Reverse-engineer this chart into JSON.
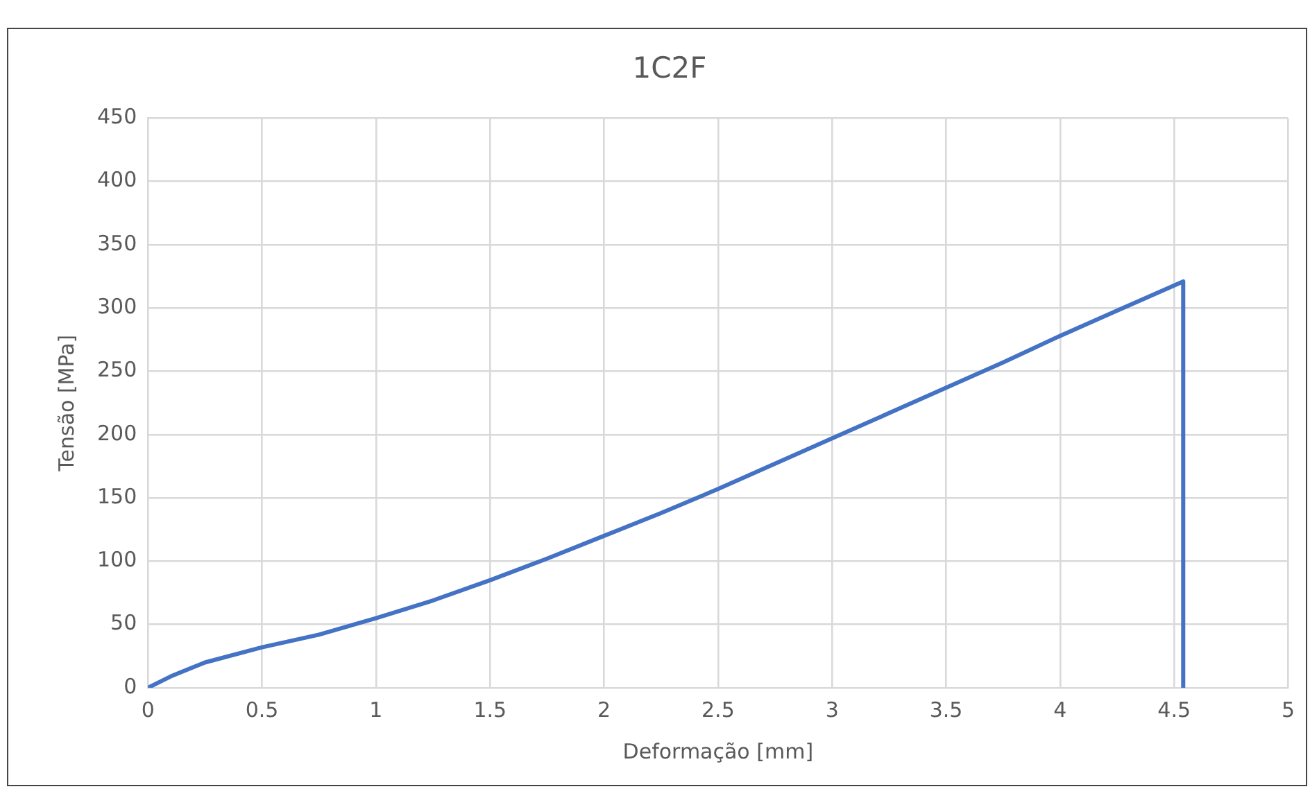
{
  "chart_data": {
    "type": "line",
    "title": "1C2F",
    "xlabel": "Deformação [mm]",
    "ylabel": "Tensão [MPa]",
    "series": [
      {
        "color": "#4472c4",
        "x": [
          0,
          0.1,
          0.25,
          0.5,
          0.75,
          1,
          1.25,
          1.5,
          1.75,
          2,
          2.25,
          2.5,
          2.75,
          3,
          3.25,
          3.5,
          3.75,
          4,
          4.25,
          4.54,
          4.54
        ],
        "values": [
          0,
          9,
          20,
          32,
          42,
          55,
          69,
          85,
          102,
          120,
          138,
          157,
          177,
          197,
          217,
          237,
          257,
          278,
          298,
          321,
          0
        ]
      }
    ],
    "xlim": [
      0,
      5
    ],
    "xticks": [
      0,
      0.5,
      1,
      1.5,
      2,
      2.5,
      3,
      3.5,
      4,
      4.5,
      5
    ],
    "ylim": [
      0,
      450
    ],
    "yticks": [
      0,
      50,
      100,
      150,
      200,
      250,
      300,
      350,
      400,
      450
    ],
    "grid": true,
    "legend": false,
    "marker": "none",
    "line_style": "solid"
  }
}
